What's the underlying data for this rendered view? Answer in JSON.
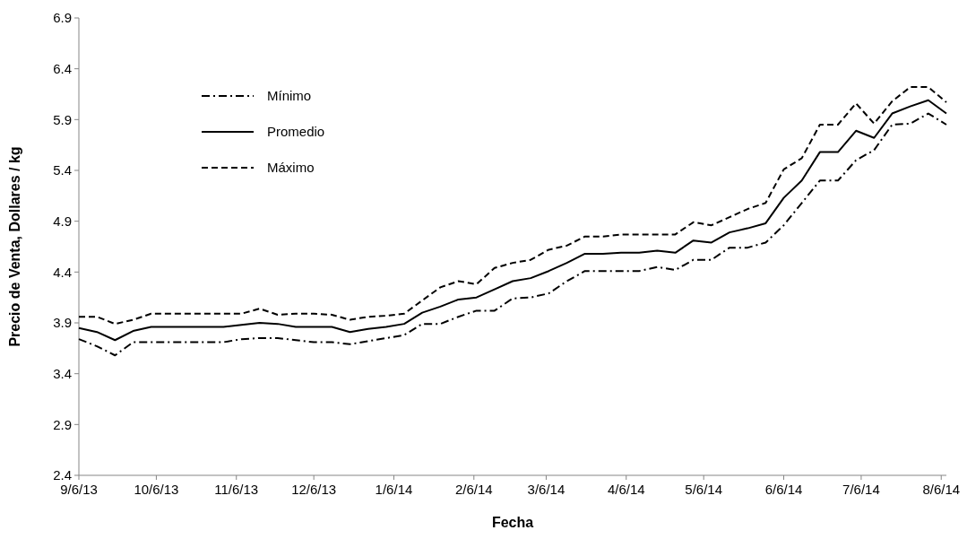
{
  "chart_data": {
    "type": "line",
    "xlabel": "Fecha",
    "ylabel": "Precio de Venta, Dollares / kg",
    "x": [
      "2013-09-06",
      "2013-09-13",
      "2013-09-20",
      "2013-09-27",
      "2013-10-04",
      "2013-10-11",
      "2013-10-18",
      "2013-10-25",
      "2013-11-01",
      "2013-11-08",
      "2013-11-15",
      "2013-11-22",
      "2013-11-29",
      "2013-12-06",
      "2013-12-13",
      "2013-12-20",
      "2013-12-27",
      "2014-01-03",
      "2014-01-10",
      "2014-01-17",
      "2014-01-24",
      "2014-01-31",
      "2014-02-07",
      "2014-02-14",
      "2014-02-21",
      "2014-02-28",
      "2014-03-07",
      "2014-03-14",
      "2014-03-21",
      "2014-03-28",
      "2014-04-04",
      "2014-04-11",
      "2014-04-18",
      "2014-04-25",
      "2014-05-02",
      "2014-05-09",
      "2014-05-16",
      "2014-05-23",
      "2014-05-30",
      "2014-06-06",
      "2014-06-13",
      "2014-06-20",
      "2014-06-27",
      "2014-07-04",
      "2014-07-11",
      "2014-07-18",
      "2014-07-25",
      "2014-08-01",
      "2014-08-08"
    ],
    "series": [
      {
        "name": "Mínimo",
        "color": "#000000",
        "line_style": "dashdot",
        "values": [
          3.74,
          3.67,
          3.58,
          3.71,
          3.71,
          3.71,
          3.71,
          3.71,
          3.71,
          3.74,
          3.75,
          3.75,
          3.73,
          3.71,
          3.71,
          3.69,
          3.72,
          3.75,
          3.78,
          3.89,
          3.89,
          3.96,
          4.02,
          4.02,
          4.14,
          4.15,
          4.19,
          4.31,
          4.41,
          4.41,
          4.41,
          4.41,
          4.45,
          4.42,
          4.52,
          4.52,
          4.64,
          4.64,
          4.69,
          4.86,
          5.08,
          5.3,
          5.3,
          5.5,
          5.6,
          5.85,
          5.86,
          5.96,
          5.85
        ]
      },
      {
        "name": "Promedio",
        "color": "#000000",
        "line_style": "solid",
        "values": [
          3.85,
          3.81,
          3.73,
          3.82,
          3.86,
          3.86,
          3.86,
          3.86,
          3.86,
          3.88,
          3.9,
          3.89,
          3.86,
          3.86,
          3.86,
          3.81,
          3.84,
          3.86,
          3.89,
          4.0,
          4.06,
          4.13,
          4.15,
          4.23,
          4.31,
          4.34,
          4.41,
          4.49,
          4.58,
          4.58,
          4.59,
          4.59,
          4.61,
          4.59,
          4.71,
          4.69,
          4.79,
          4.83,
          4.88,
          5.13,
          5.3,
          5.58,
          5.58,
          5.79,
          5.72,
          5.96,
          6.03,
          6.09,
          5.96
        ]
      },
      {
        "name": "Máximo",
        "color": "#000000",
        "line_style": "dashed",
        "values": [
          3.96,
          3.96,
          3.89,
          3.93,
          3.99,
          3.99,
          3.99,
          3.99,
          3.99,
          3.99,
          4.04,
          3.98,
          3.99,
          3.99,
          3.98,
          3.93,
          3.96,
          3.97,
          3.99,
          4.12,
          4.25,
          4.31,
          4.28,
          4.44,
          4.49,
          4.52,
          4.62,
          4.66,
          4.75,
          4.75,
          4.77,
          4.77,
          4.77,
          4.77,
          4.89,
          4.86,
          4.94,
          5.02,
          5.08,
          5.41,
          5.52,
          5.85,
          5.85,
          6.06,
          5.86,
          6.08,
          6.22,
          6.22,
          6.07
        ]
      }
    ],
    "xlim": [
      "2013-09-06",
      "2014-08-08"
    ],
    "xticks": [
      {
        "value": "2013-09-06",
        "label": "9/6/13"
      },
      {
        "value": "2013-10-06",
        "label": "10/6/13"
      },
      {
        "value": "2013-11-06",
        "label": "11/6/13"
      },
      {
        "value": "2013-12-06",
        "label": "12/6/13"
      },
      {
        "value": "2014-01-06",
        "label": "1/6/14"
      },
      {
        "value": "2014-02-06",
        "label": "2/6/14"
      },
      {
        "value": "2014-03-06",
        "label": "3/6/14"
      },
      {
        "value": "2014-04-06",
        "label": "4/6/14"
      },
      {
        "value": "2014-05-06",
        "label": "5/6/14"
      },
      {
        "value": "2014-06-06",
        "label": "6/6/14"
      },
      {
        "value": "2014-07-06",
        "label": "7/6/14"
      },
      {
        "value": "2014-08-06",
        "label": "8/6/14"
      }
    ],
    "ylim": [
      2.4,
      6.9
    ],
    "yticks": [
      {
        "value": 2.4,
        "label": "2.4"
      },
      {
        "value": 2.9,
        "label": "2.9"
      },
      {
        "value": 3.4,
        "label": "3.4"
      },
      {
        "value": 3.9,
        "label": "3.9"
      },
      {
        "value": 4.4,
        "label": "4.4"
      },
      {
        "value": 4.9,
        "label": "4.9"
      },
      {
        "value": 5.4,
        "label": "5.4"
      },
      {
        "value": 5.9,
        "label": "5.9"
      },
      {
        "value": 6.4,
        "label": "6.4"
      },
      {
        "value": 6.9,
        "label": "6.9"
      }
    ],
    "grid": false,
    "legend": "top left",
    "marker": "none"
  }
}
